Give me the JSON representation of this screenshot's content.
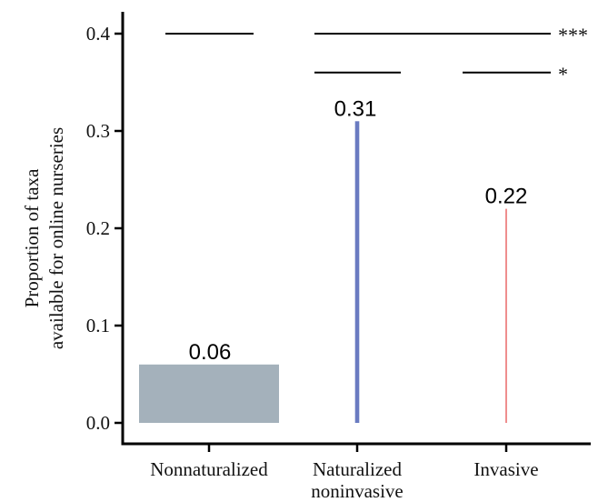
{
  "chart_data": {
    "type": "bar",
    "categories": [
      "Nonnaturalized",
      "Naturalized noninvasive",
      "Invasive"
    ],
    "category_lines": [
      [
        "Nonnaturalized"
      ],
      [
        "Naturalized",
        "noninvasive"
      ],
      [
        "Invasive"
      ]
    ],
    "values": [
      0.06,
      0.31,
      0.22
    ],
    "value_labels": [
      "0.06",
      "0.31",
      "0.22"
    ],
    "colors": [
      "#a4b1bb",
      "#6a7bc1",
      "#ee8585"
    ],
    "bar_widths": [
      1.0,
      0.03,
      0.012
    ],
    "ylabel_lines": [
      "Proportion of taxa",
      "available for online nurseries"
    ],
    "xlabel": "",
    "ylim": [
      0,
      0.41
    ],
    "yticks": [
      0.0,
      0.1,
      0.2,
      0.3,
      0.4
    ],
    "ytick_labels": [
      "0.0",
      "0.1",
      "0.2",
      "0.3",
      "0.4"
    ],
    "grid": false,
    "significance": [
      {
        "label": "***",
        "y": 0.4,
        "from_category": 0,
        "to_category": 2
      },
      {
        "label": "*",
        "y": 0.36,
        "from_category": 1,
        "to_category": 2
      }
    ]
  }
}
